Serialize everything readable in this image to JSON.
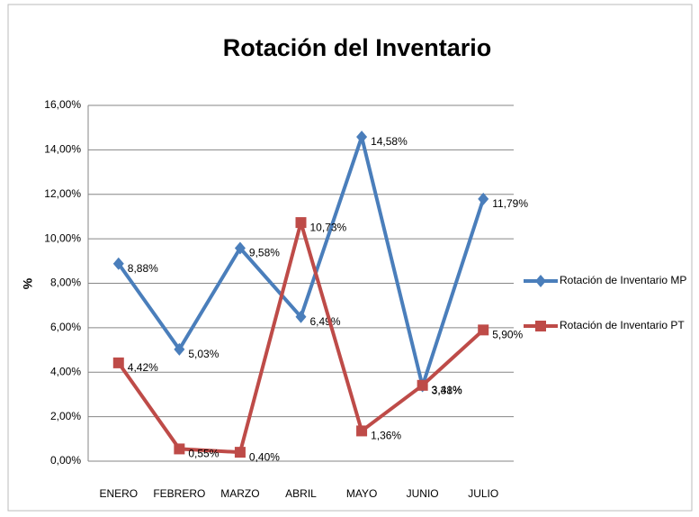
{
  "chart_data": {
    "type": "line",
    "title": "Rotación del Inventario",
    "y_label": "%",
    "categories": [
      "ENERO",
      "FEBRERO",
      "MARZO",
      "ABRIL",
      "MAYO",
      "JUNIO",
      "JULIO"
    ],
    "series": [
      {
        "name": "Rotación de Inventario MP",
        "color": "#4a7ebb",
        "marker": "diamond",
        "values": [
          8.88,
          5.03,
          9.58,
          6.49,
          14.58,
          3.38,
          11.79
        ],
        "value_labels": [
          "8,88%",
          "5,03%",
          "9,58%",
          "6,49%",
          "14,58%",
          "3,38%",
          "11,79%"
        ]
      },
      {
        "name": "Rotación de Inventario PT",
        "color": "#be4b48",
        "marker": "square",
        "values": [
          4.42,
          0.55,
          0.4,
          10.73,
          1.36,
          3.41,
          5.9
        ],
        "value_labels": [
          "4,42%",
          "0,55%",
          "0,40%",
          "10,73%",
          "1,36%",
          "3,41%",
          "5,90%"
        ]
      }
    ],
    "ylim": [
      0,
      16
    ],
    "yticks": [
      {
        "value": 0,
        "label": "0,00%"
      },
      {
        "value": 2,
        "label": "2,00%"
      },
      {
        "value": 4,
        "label": "4,00%"
      },
      {
        "value": 6,
        "label": "6,00%"
      },
      {
        "value": 8,
        "label": "8,00%"
      },
      {
        "value": 10,
        "label": "10,00%"
      },
      {
        "value": 12,
        "label": "12,00%"
      },
      {
        "value": 14,
        "label": "14,00%"
      },
      {
        "value": 16,
        "label": "16,00%"
      }
    ],
    "grid": true,
    "legend": "right"
  }
}
